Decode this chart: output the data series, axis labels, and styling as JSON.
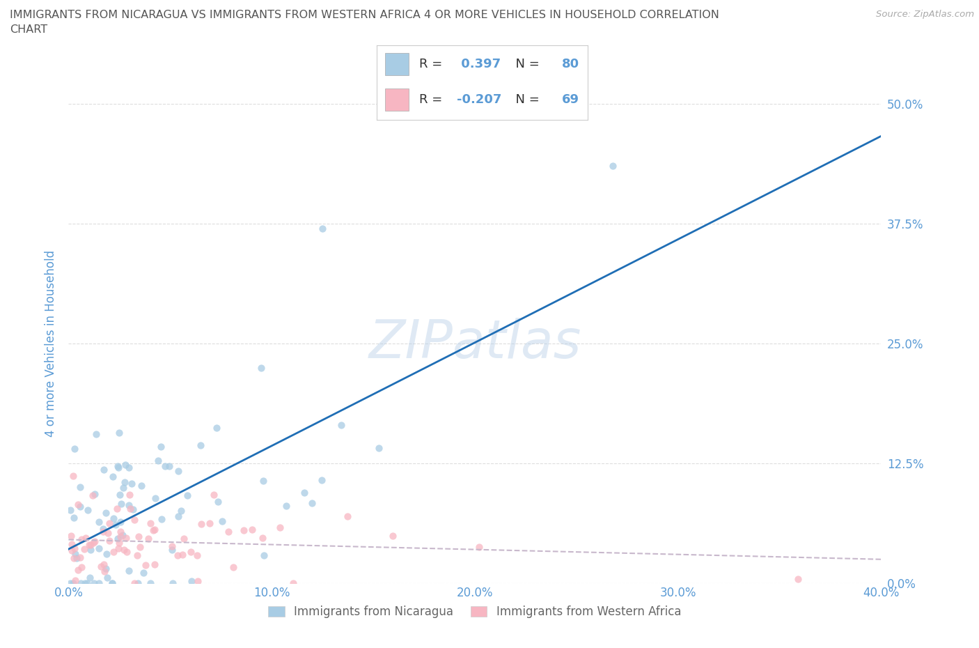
{
  "title_line1": "IMMIGRANTS FROM NICARAGUA VS IMMIGRANTS FROM WESTERN AFRICA 4 OR MORE VEHICLES IN HOUSEHOLD CORRELATION",
  "title_line2": "CHART",
  "source": "Source: ZipAtlas.com",
  "xlim": [
    0.0,
    0.4
  ],
  "ylim": [
    0.0,
    0.5
  ],
  "ylabel": "4 or more Vehicles in Household",
  "legend_label1": "Immigrants from Nicaragua",
  "legend_label2": "Immigrants from Western Africa",
  "R1": 0.397,
  "N1": 80,
  "R2": -0.207,
  "N2": 69,
  "color1": "#a8cce4",
  "color2": "#f7b6c2",
  "trendline1_color": "#1f6eb5",
  "trendline2_color": "#c8b8cc",
  "watermark": "ZIPatlas",
  "background_color": "#ffffff",
  "grid_color": "#dddddd",
  "tick_label_color": "#5b9bd5",
  "title_color": "#555555",
  "source_color": "#aaaaaa"
}
